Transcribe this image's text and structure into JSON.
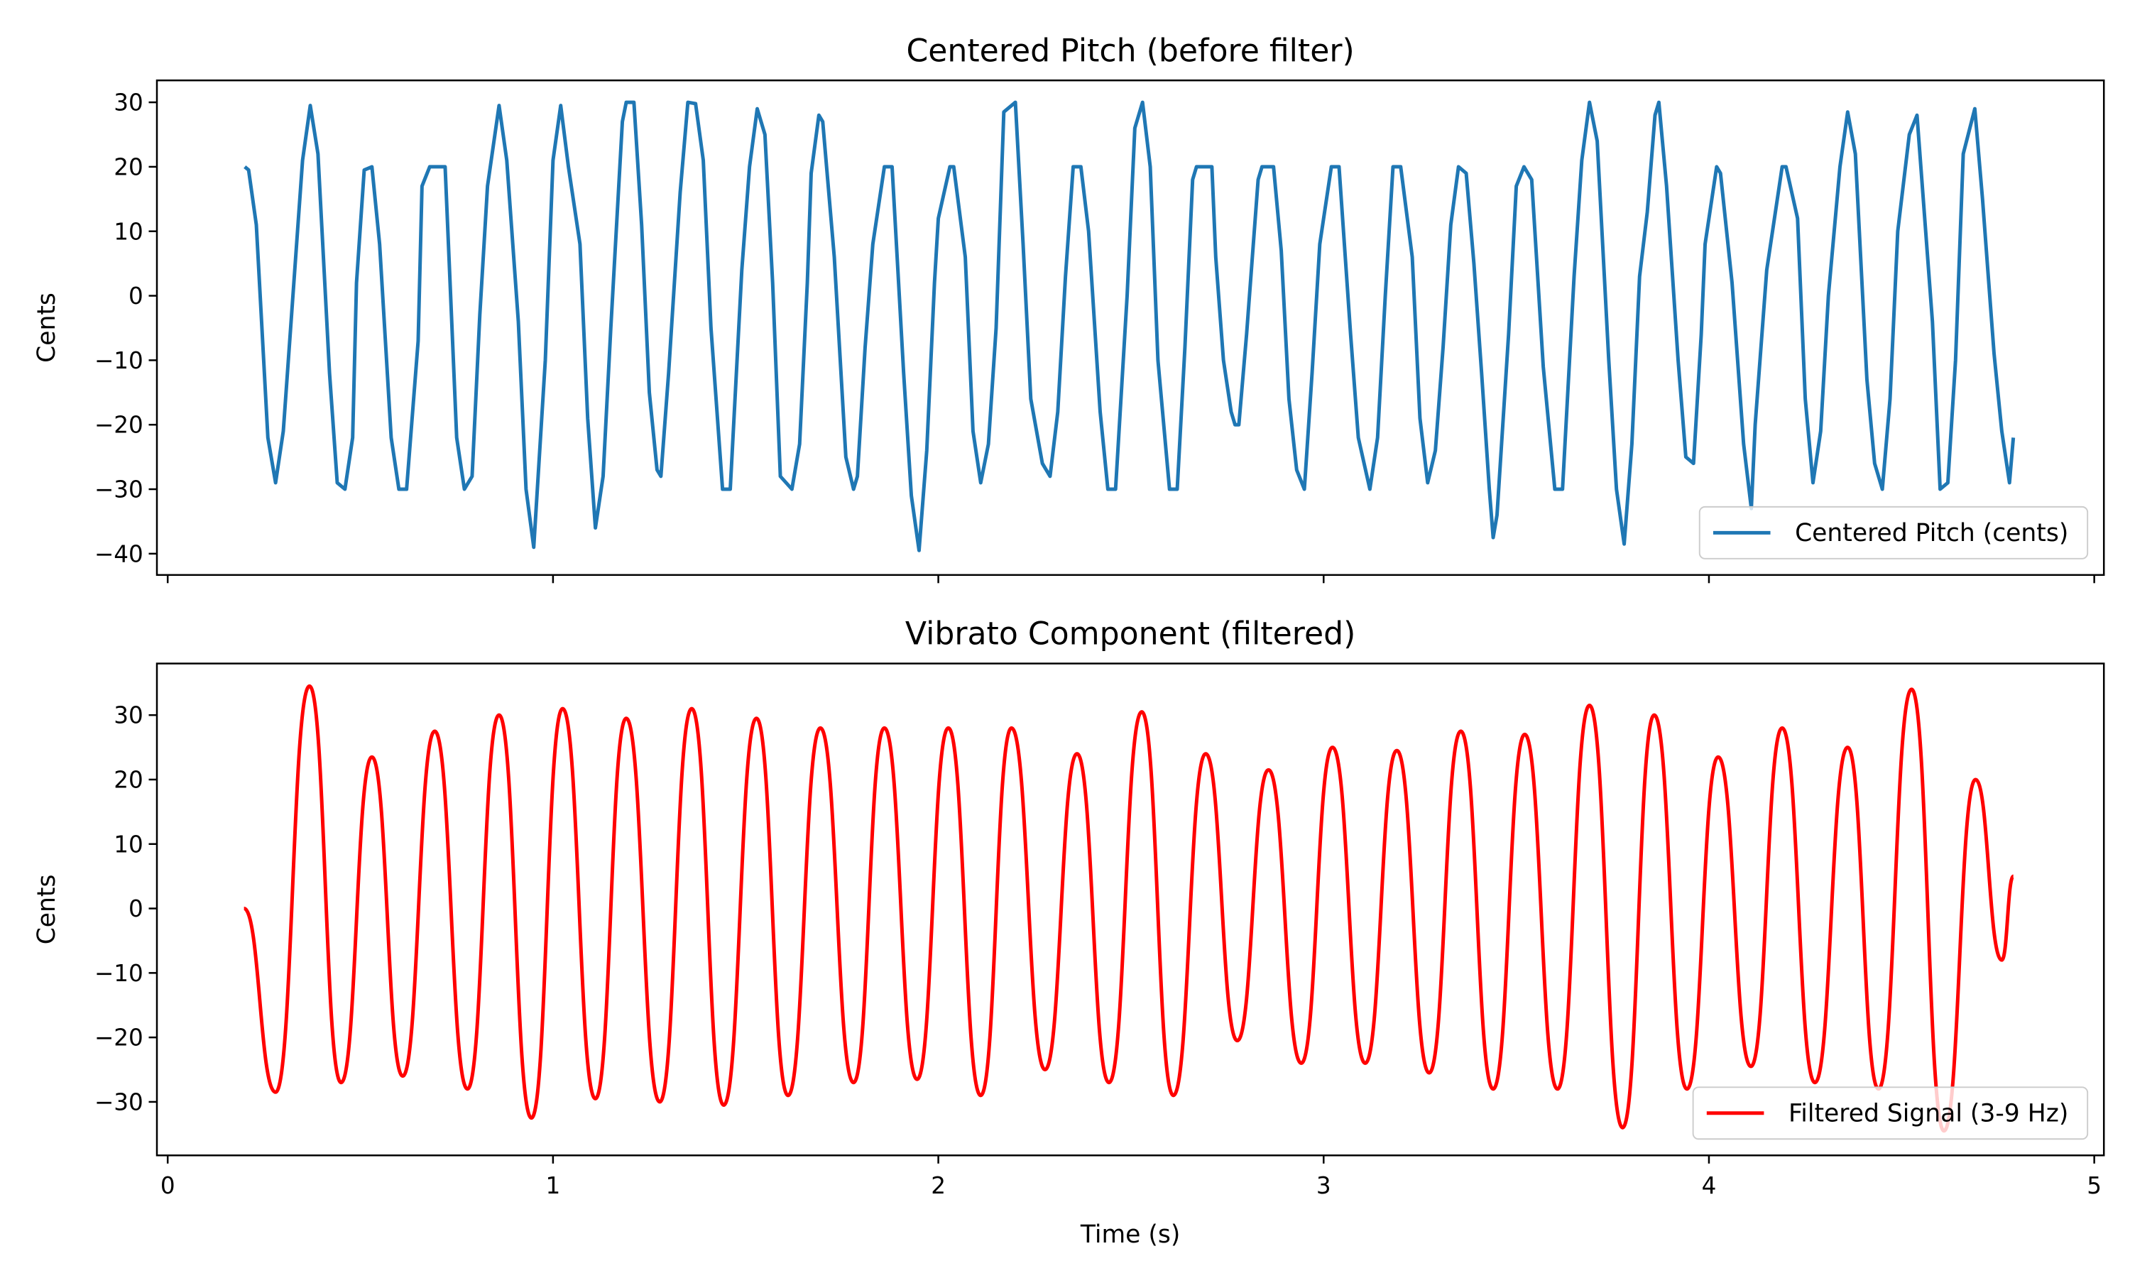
{
  "chart_data": [
    {
      "type": "line",
      "title": "Centered Pitch (before filter)",
      "ylabel": "Cents",
      "x": [
        0.2,
        0.21,
        0.23,
        0.26,
        0.28,
        0.3,
        0.35,
        0.37,
        0.39,
        0.42,
        0.44,
        0.46,
        0.48,
        0.49,
        0.51,
        0.53,
        0.55,
        0.58,
        0.6,
        0.62,
        0.65,
        0.66,
        0.68,
        0.72,
        0.75,
        0.77,
        0.79,
        0.81,
        0.83,
        0.86,
        0.88,
        0.91,
        0.93,
        0.95,
        0.98,
        1.0,
        1.02,
        1.04,
        1.07,
        1.09,
        1.11,
        1.13,
        1.15,
        1.18,
        1.19,
        1.21,
        1.23,
        1.25,
        1.27,
        1.28,
        1.3,
        1.33,
        1.35,
        1.37,
        1.39,
        1.41,
        1.44,
        1.46,
        1.49,
        1.51,
        1.53,
        1.55,
        1.57,
        1.59,
        1.62,
        1.64,
        1.66,
        1.67,
        1.69,
        1.7,
        1.73,
        1.76,
        1.78,
        1.79,
        1.81,
        1.83,
        1.86,
        1.88,
        1.91,
        1.93,
        1.95,
        1.97,
        1.99,
        2.0,
        2.03,
        2.04,
        2.07,
        2.09,
        2.11,
        2.13,
        2.15,
        2.17,
        2.2,
        2.22,
        2.24,
        2.27,
        2.29,
        2.31,
        2.33,
        2.35,
        2.37,
        2.39,
        2.42,
        2.44,
        2.46,
        2.49,
        2.51,
        2.53,
        2.55,
        2.57,
        2.6,
        2.62,
        2.64,
        2.66,
        2.67,
        2.71,
        2.72,
        2.74,
        2.76,
        2.77,
        2.78,
        2.8,
        2.83,
        2.84,
        2.87,
        2.89,
        2.91,
        2.93,
        2.95,
        2.97,
        2.99,
        3.02,
        3.04,
        3.07,
        3.09,
        3.12,
        3.14,
        3.16,
        3.18,
        3.2,
        3.23,
        3.25,
        3.27,
        3.29,
        3.31,
        3.33,
        3.35,
        3.37,
        3.39,
        3.41,
        3.43,
        3.44,
        3.45,
        3.48,
        3.5,
        3.52,
        3.54,
        3.57,
        3.6,
        3.62,
        3.65,
        3.67,
        3.69,
        3.71,
        3.74,
        3.76,
        3.78,
        3.8,
        3.82,
        3.84,
        3.86,
        3.87,
        3.89,
        3.92,
        3.94,
        3.96,
        3.98,
        3.99,
        4.02,
        4.03,
        4.06,
        4.09,
        4.11,
        4.12,
        4.15,
        4.17,
        4.19,
        4.2,
        4.23,
        4.25,
        4.27,
        4.29,
        4.31,
        4.34,
        4.36,
        4.38,
        4.41,
        4.43,
        4.45,
        4.47,
        4.49,
        4.52,
        4.54,
        4.55,
        4.58,
        4.6,
        4.62,
        4.64,
        4.66,
        4.69,
        4.71,
        4.74,
        4.76,
        4.78,
        4.79
      ],
      "series": [
        {
          "name": "Centered Pitch (cents)",
          "color": "#1f77b4",
          "values": [
            20,
            19.5,
            11,
            -22,
            -29,
            -21,
            21,
            29.5,
            22,
            -12,
            -29,
            -30,
            -22,
            2,
            19.5,
            20,
            8,
            -22,
            -30,
            -30,
            -7,
            17,
            20,
            20,
            -22,
            -30,
            -28,
            -3,
            17,
            29.5,
            21,
            -4,
            -30,
            -39,
            -10,
            21,
            29.5,
            20,
            8,
            -19,
            -36,
            -28,
            -5,
            27,
            30,
            30,
            11,
            -15,
            -27,
            -28,
            -12,
            16,
            30,
            29.8,
            21,
            -5,
            -30,
            -30,
            4,
            20,
            29,
            25,
            2,
            -28,
            -30,
            -23,
            2,
            19,
            28,
            27,
            6,
            -25,
            -30,
            -28,
            -8,
            8,
            20,
            20,
            -12,
            -31,
            -39.5,
            -24,
            2,
            12,
            20,
            20,
            6,
            -21,
            -29,
            -23,
            -5,
            28.5,
            30,
            8,
            -16,
            -26,
            -28,
            -18,
            3,
            20,
            20,
            10,
            -18,
            -30,
            -30,
            0,
            26,
            30,
            20,
            -10,
            -30,
            -30,
            -8,
            18,
            20,
            20,
            6,
            -10,
            -18,
            -20,
            -20,
            -6,
            18,
            20,
            20,
            7,
            -16,
            -27,
            -30,
            -12,
            8,
            20,
            20,
            -6,
            -22,
            -30,
            -22,
            0,
            20,
            20,
            6,
            -19,
            -29,
            -24,
            -8,
            11,
            20,
            19,
            5,
            -12,
            -30,
            -37.5,
            -34,
            -6,
            17,
            20,
            18,
            -11,
            -30,
            -30,
            3,
            21,
            30,
            24,
            -10,
            -30,
            -38.5,
            -23,
            3,
            13,
            28,
            30,
            17,
            -10,
            -25,
            -26,
            -6,
            8,
            20,
            19,
            2,
            -23,
            -33,
            -20,
            4,
            12,
            20,
            20,
            12,
            -16,
            -29,
            -21,
            0,
            20,
            28.5,
            22,
            -13,
            -26,
            -30,
            -16,
            10,
            25,
            28,
            20,
            -4,
            -30,
            -29,
            -10,
            22,
            29,
            15,
            -9,
            -21,
            -29,
            -22
          ]
        }
      ],
      "xlim": [
        -0.028,
        5.025
      ],
      "xticks": [
        0,
        1,
        2,
        3,
        4,
        5
      ],
      "ylim": [
        -43.3,
        33.4
      ],
      "yticks": [
        {
          "value": -40,
          "label": "−40"
        },
        {
          "value": -30,
          "label": "−30"
        },
        {
          "value": -20,
          "label": "−20"
        },
        {
          "value": -10,
          "label": "−10"
        },
        0,
        10,
        20,
        30
      ],
      "legend": "lower right"
    },
    {
      "type": "line",
      "title": "Vibrato Component (filtered)",
      "ylabel": "Cents",
      "xlabel": "Time (s)",
      "x": [
        0.198,
        0.28,
        0.368,
        0.45,
        0.53,
        0.61,
        0.693,
        0.778,
        0.86,
        0.944,
        1.025,
        1.11,
        1.19,
        1.277,
        1.36,
        1.443,
        1.528,
        1.61,
        1.694,
        1.78,
        1.86,
        1.945,
        2.026,
        2.11,
        2.19,
        2.277,
        2.36,
        2.443,
        2.528,
        2.61,
        2.694,
        2.776,
        2.857,
        2.942,
        3.023,
        3.108,
        3.19,
        3.274,
        3.356,
        3.44,
        3.522,
        3.607,
        3.69,
        3.776,
        3.858,
        3.943,
        4.024,
        4.109,
        4.19,
        4.275,
        4.36,
        4.44,
        4.526,
        4.61,
        4.692,
        4.76,
        4.79
      ],
      "series": [
        {
          "name": "Filtered Signal (3-9 Hz)",
          "color": "#ff0000",
          "values": [
            0,
            -28.5,
            34.5,
            -27,
            23.5,
            -26,
            27.5,
            -28,
            30,
            -32.5,
            31,
            -29.5,
            29.5,
            -30,
            31,
            -30.5,
            29.5,
            -29,
            28,
            -27,
            28,
            -26.5,
            28,
            -29,
            28,
            -25,
            24,
            -27,
            30.5,
            -29,
            24,
            -20.5,
            21.5,
            -24,
            25,
            -24,
            24.5,
            -25.5,
            27.5,
            -28,
            27,
            -28,
            31.5,
            -34,
            30,
            -28,
            23.5,
            -24.5,
            28,
            -27,
            25,
            -28,
            34,
            -34.5,
            20,
            -8,
            5
          ]
        }
      ],
      "xlim": [
        -0.028,
        5.025
      ],
      "xticks": [
        0,
        1,
        2,
        3,
        4,
        5
      ],
      "ylim": [
        -38.3,
        38
      ],
      "yticks": [
        {
          "value": -30,
          "label": "−30"
        },
        {
          "value": -20,
          "label": "−20"
        },
        {
          "value": -10,
          "label": "−10"
        },
        0,
        10,
        20,
        30
      ],
      "legend": "lower right",
      "smooth": true
    }
  ]
}
